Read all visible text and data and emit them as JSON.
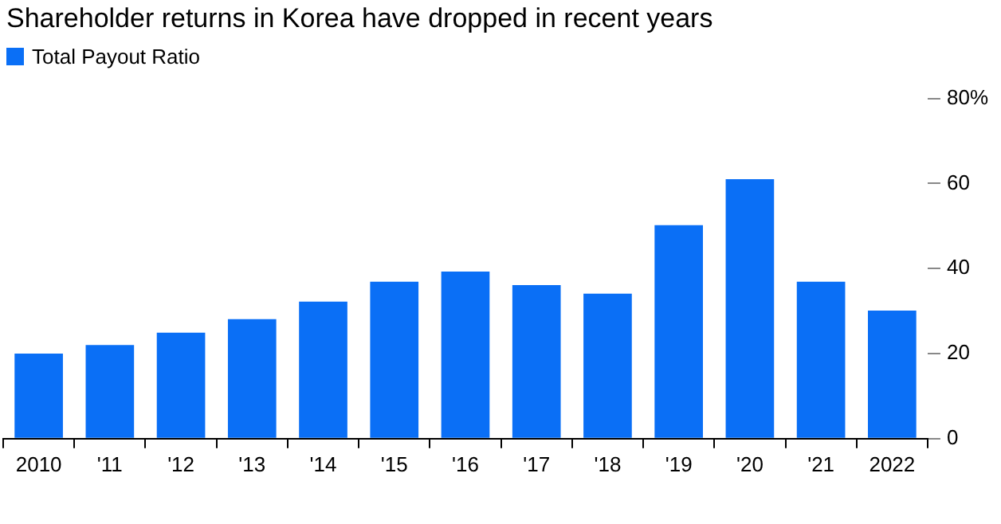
{
  "chart_data": {
    "type": "bar",
    "title": "Shareholder returns in Korea have dropped in recent years",
    "categories": [
      "2010",
      "'11",
      "'12",
      "'13",
      "'14",
      "'15",
      "'16",
      "'17",
      "'18",
      "'19",
      "'20",
      "'21",
      "2022"
    ],
    "series": [
      {
        "name": "Total Payout Ratio",
        "color": "#0a6ff6",
        "values": [
          20,
          22,
          24.9,
          28.1,
          32.2,
          36.9,
          39.3,
          36.1,
          34.1,
          50.2,
          61,
          36.9,
          30.1
        ]
      }
    ],
    "ylim": [
      0,
      80
    ],
    "yticks": [
      0,
      20,
      40,
      60,
      {
        "value": 80,
        "label": "80%"
      }
    ],
    "grid": false,
    "legend": "top left"
  }
}
